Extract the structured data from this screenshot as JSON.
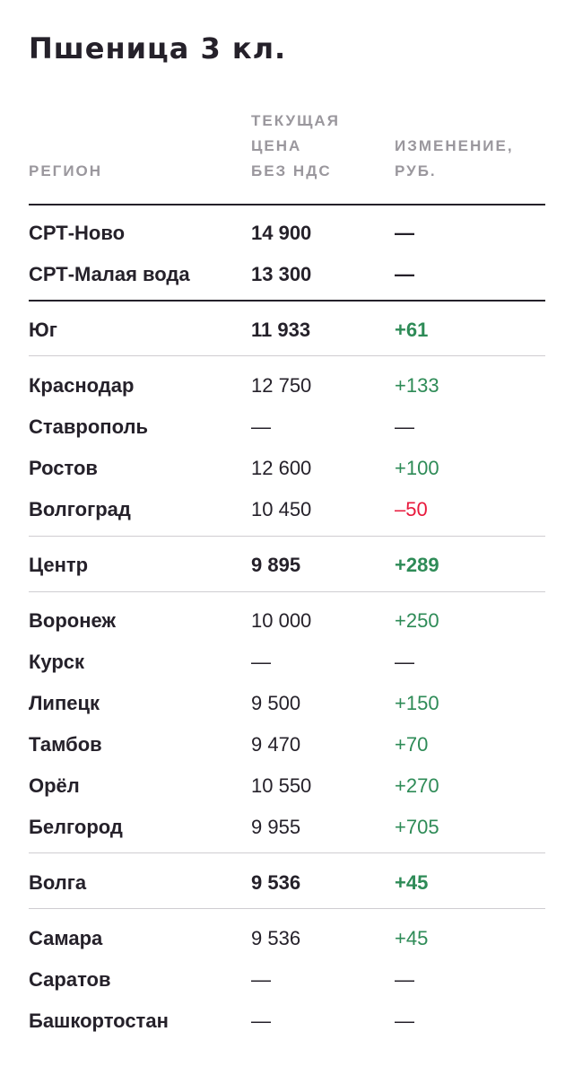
{
  "title": "Пшеница 3 кл.",
  "headers": {
    "region": "РЕГИОН",
    "price_line1": "ТЕКУЩАЯ",
    "price_line2": "ЦЕНА",
    "price_line3": "БЕЗ НДС",
    "change_line1": "ИЗМЕНЕНИЕ,",
    "change_line2": "РУБ."
  },
  "colors": {
    "positive": "#2e8b57",
    "negative": "#e8193c",
    "text": "#25212a",
    "header": "#9a979d"
  },
  "rows": [
    {
      "region": "СРТ-Ново",
      "price": "14 900",
      "change": "—"
    },
    {
      "region": "СРТ-Малая вода",
      "price": "13 300",
      "change": "—"
    },
    {
      "region": "Юг",
      "price": "11 933",
      "change": "+61"
    },
    {
      "region": "Краснодар",
      "price": "12 750",
      "change": "+133"
    },
    {
      "region": "Ставрополь",
      "price": "—",
      "change": "—"
    },
    {
      "region": "Ростов",
      "price": "12 600",
      "change": "+100"
    },
    {
      "region": "Волгоград",
      "price": "10 450",
      "change": "–50"
    },
    {
      "region": "Центр",
      "price": "9 895",
      "change": "+289"
    },
    {
      "region": "Воронеж",
      "price": "10 000",
      "change": "+250"
    },
    {
      "region": "Курск",
      "price": "—",
      "change": "—"
    },
    {
      "region": "Липецк",
      "price": "9 500",
      "change": "+150"
    },
    {
      "region": "Тамбов",
      "price": "9 470",
      "change": "+70"
    },
    {
      "region": "Орёл",
      "price": "10 550",
      "change": "+270"
    },
    {
      "region": "Белгород",
      "price": "9 955",
      "change": "+705"
    },
    {
      "region": "Волга",
      "price": "9 536",
      "change": "+45"
    },
    {
      "region": "Самара",
      "price": "9 536",
      "change": "+45"
    },
    {
      "region": "Саратов",
      "price": "—",
      "change": "—"
    },
    {
      "region": "Башкортостан",
      "price": "—",
      "change": "—"
    }
  ]
}
